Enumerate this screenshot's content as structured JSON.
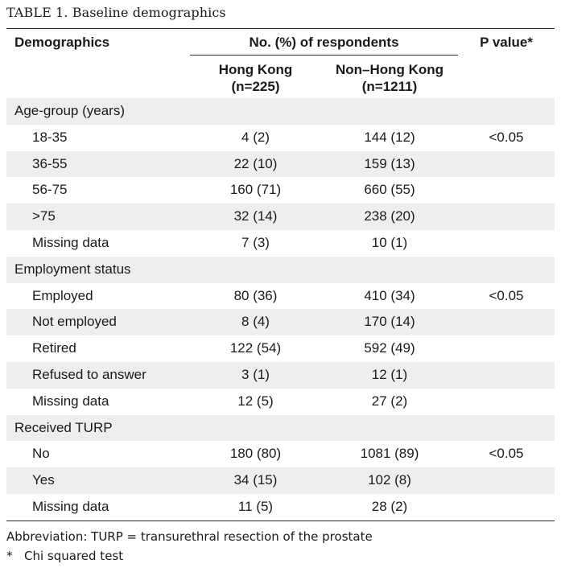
{
  "caption": "TABLE 1. Baseline demographics",
  "header": {
    "demographics": "Demographics",
    "group": "No. (%) of respondents",
    "p_value": "P value*",
    "hong_kong": "Hong Kong",
    "hong_kong_n": "(n=225)",
    "non_hong_kong": "Non–Hong Kong",
    "non_hong_kong_n": "(n=1211)"
  },
  "rows": [
    {
      "label": "Age-group (years)",
      "type": "section",
      "hk": "",
      "nhk": "",
      "p": ""
    },
    {
      "label": "18-35",
      "type": "sub",
      "hk": "4 (2)",
      "nhk": "144 (12)",
      "p": "<0.05"
    },
    {
      "label": "36-55",
      "type": "sub",
      "hk": "22 (10)",
      "nhk": "159 (13)",
      "p": ""
    },
    {
      "label": "56-75",
      "type": "sub",
      "hk": "160 (71)",
      "nhk": "660 (55)",
      "p": ""
    },
    {
      "label": ">75",
      "type": "sub",
      "hk": "32 (14)",
      "nhk": "238 (20)",
      "p": ""
    },
    {
      "label": "Missing data",
      "type": "sub",
      "hk": "7 (3)",
      "nhk": "10 (1)",
      "p": ""
    },
    {
      "label": "Employment status",
      "type": "section",
      "hk": "",
      "nhk": "",
      "p": ""
    },
    {
      "label": "Employed",
      "type": "sub",
      "hk": "80 (36)",
      "nhk": "410 (34)",
      "p": "<0.05"
    },
    {
      "label": "Not employed",
      "type": "sub",
      "hk": "8 (4)",
      "nhk": "170 (14)",
      "p": ""
    },
    {
      "label": "Retired",
      "type": "sub",
      "hk": "122 (54)",
      "nhk": "592 (49)",
      "p": ""
    },
    {
      "label": "Refused to answer",
      "type": "sub",
      "hk": "3 (1)",
      "nhk": "12 (1)",
      "p": ""
    },
    {
      "label": "Missing data",
      "type": "sub",
      "hk": "12 (5)",
      "nhk": "27 (2)",
      "p": ""
    },
    {
      "label": "Received TURP",
      "type": "section",
      "hk": "",
      "nhk": "",
      "p": ""
    },
    {
      "label": "No",
      "type": "sub",
      "hk": "180 (80)",
      "nhk": "1081 (89)",
      "p": "<0.05"
    },
    {
      "label": "Yes",
      "type": "sub",
      "hk": "34 (15)",
      "nhk": "102 (8)",
      "p": ""
    },
    {
      "label": "Missing data",
      "type": "sub",
      "hk": "11 (5)",
      "nhk": "28 (2)",
      "p": ""
    }
  ],
  "footnotes": {
    "abbreviation": "Abbreviation: TURP = transurethral resection of the prostate",
    "star": "*",
    "chi": "Chi squared test"
  }
}
